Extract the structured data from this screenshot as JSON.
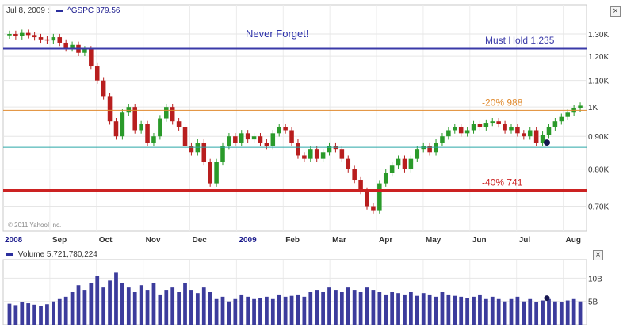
{
  "header": {
    "date": "Jul 8, 2009 :",
    "symbol": "^GSPC",
    "value": "879.56"
  },
  "copyright": "© 2011 Yahoo! Inc.",
  "volume_header": {
    "label": "Volume",
    "value": "5,721,780,224"
  },
  "close_symbol": "×",
  "colors": {
    "up": "#2a9a2a",
    "down": "#b81e1e",
    "volume": "#3c3c9c",
    "marker": "#161650"
  },
  "chart_data": [
    {
      "type": "candlestick",
      "title": "",
      "ylim": [
        640,
        1380
      ],
      "y_scale": "log",
      "y_ticks": [
        {
          "value": 700,
          "label": "0.70K"
        },
        {
          "value": 800,
          "label": "0.80K"
        },
        {
          "value": 900,
          "label": "0.90K"
        },
        {
          "value": 1000,
          "label": "1K"
        },
        {
          "value": 1100,
          "label": "1.10K"
        },
        {
          "value": 1200,
          "label": "1.20K"
        },
        {
          "value": 1300,
          "label": "1.30K"
        }
      ],
      "x_labels": [
        "2008",
        "Sep",
        "Oct",
        "Nov",
        "Dec",
        "2009",
        "Feb",
        "Mar",
        "Apr",
        "May",
        "Jun",
        "Jul",
        "Aug"
      ],
      "grid": true,
      "series_weekly_close": [
        1300,
        1290,
        1305,
        1295,
        1285,
        1275,
        1270,
        1285,
        1260,
        1235,
        1250,
        1215,
        1230,
        1160,
        1100,
        1040,
        950,
        900,
        980,
        1000,
        920,
        940,
        880,
        900,
        960,
        1000,
        950,
        930,
        870,
        850,
        880,
        820,
        760,
        820,
        870,
        900,
        880,
        910,
        890,
        900,
        880,
        870,
        910,
        930,
        920,
        880,
        840,
        830,
        860,
        830,
        850,
        870,
        860,
        830,
        800,
        770,
        740,
        700,
        690,
        760,
        790,
        810,
        830,
        800,
        830,
        860,
        870,
        850,
        880,
        900,
        920,
        930,
        910,
        920,
        940,
        930,
        945,
        950,
        940,
        920,
        930,
        910,
        900,
        920,
        880,
        905,
        930,
        950,
        965,
        980,
        995,
        1005
      ],
      "lows_marked": [
        {
          "value": 880,
          "label": ""
        }
      ],
      "reference_lines": [
        {
          "value": 1235,
          "label": "Must Hold 1,235",
          "color": "#3a3aa8"
        },
        {
          "value": 1110,
          "label": "",
          "color": "#1f2a4a"
        },
        {
          "value": 988,
          "label": "-20% 988",
          "color": "#e08a2e"
        },
        {
          "value": 865,
          "label": "",
          "color": "#2aa8a8"
        },
        {
          "value": 741,
          "label": "-40% 741",
          "color": "#cc2222"
        }
      ],
      "annotations": [
        {
          "text": "Never Forget!"
        }
      ]
    },
    {
      "type": "bar",
      "title": "",
      "ylim": [
        0,
        14
      ],
      "unit": "B",
      "y_ticks": [
        {
          "value": 5,
          "label": "5B"
        },
        {
          "value": 10,
          "label": "10B"
        }
      ],
      "values_billion": [
        4.5,
        4.2,
        4.8,
        4.6,
        4.3,
        4.0,
        4.4,
        5.0,
        5.5,
        6.0,
        7.0,
        8.5,
        7.5,
        9.0,
        10.5,
        8.0,
        9.5,
        11.2,
        9.0,
        8.0,
        7.0,
        8.5,
        7.5,
        9.0,
        6.5,
        7.5,
        8.0,
        7.0,
        9.0,
        7.5,
        6.8,
        8.0,
        7.0,
        5.5,
        6.0,
        5.0,
        5.5,
        6.5,
        6.0,
        5.5,
        5.8,
        6.0,
        5.5,
        6.5,
        6.0,
        6.2,
        6.5,
        6.0,
        7.0,
        7.5,
        7.0,
        8.0,
        7.5,
        7.0,
        8.0,
        7.5,
        7.0,
        8.0,
        7.5,
        7.0,
        6.5,
        7.0,
        6.8,
        6.5,
        7.0,
        6.2,
        6.8,
        6.5,
        6.0,
        7.0,
        6.5,
        6.2,
        6.0,
        5.8,
        6.0,
        6.5,
        5.5,
        6.0,
        5.5,
        5.0,
        5.5,
        6.0,
        5.0,
        5.5,
        4.8,
        5.2,
        5.5,
        5.0,
        4.8,
        5.2,
        5.5,
        5.0
      ],
      "lows_marked": [
        {
          "value": 5.7,
          "label": ""
        }
      ]
    }
  ]
}
